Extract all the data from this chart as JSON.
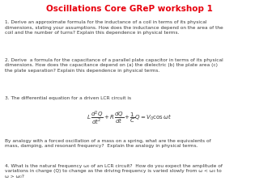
{
  "title": "Oscillations Core GReP workshop 1",
  "title_color": "#e8000d",
  "title_fontsize": 7.5,
  "background_color": "#ffffff",
  "text_color": "#3a3a3a",
  "body_fontsize": 4.2,
  "q1": "1. Derive an approximate formula for the inductance of a coil in terms of its physical\ndimensions, stating your assumptions. How does the inductance depend on the area of the\ncoil and the number of turns? Explain this dependence in physical terms.",
  "q2": "2. Derive  a formula for the capacitance of a parallel plate capacitor in terms of its physical\ndimensions. How does the capacitance depend on (a) the dielectric (b) the plate area (c)\nthe plate separation? Explain this dependence in physical terms.",
  "q3_intro": "3. The differential equation for a driven LCR circuit is",
  "q3_after": "By analogy with a forced oscillation of a mass on a spring, what are the equivalents of\nmass, damping, and resonant frequency?  Explain the analogy in physical terms.",
  "q4": "4. What is the natural frequency ω₀ of an LCR circuit?  How do you expect the amplitude of\nvariations in charge (Q) to change as the driving frequency is varied slowly from ω < ω₀ to\nω > ω₀?"
}
